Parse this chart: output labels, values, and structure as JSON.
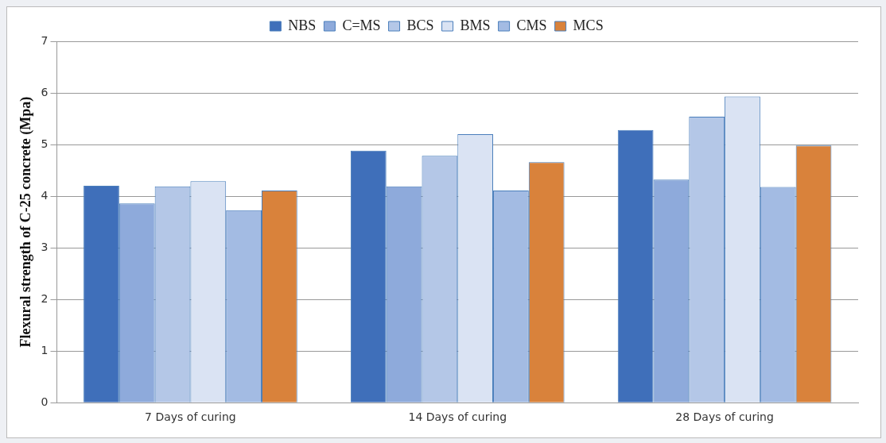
{
  "chart_data": {
    "type": "bar",
    "ylabel": "Flexural strength of C-25 concrete (Mpa)",
    "categories": [
      "7 Days of curing",
      "14 Days of curing",
      "28 Days of curing"
    ],
    "series": [
      {
        "name": "NBS",
        "color": "#3f6fba",
        "values": [
          4.2,
          4.88,
          5.28
        ]
      },
      {
        "name": "C=MS",
        "color": "#8eaadb",
        "values": [
          3.86,
          4.19,
          4.32
        ]
      },
      {
        "name": "BCS",
        "color": "#b4c7e7",
        "values": [
          4.19,
          4.78,
          5.54
        ]
      },
      {
        "name": "BMS",
        "color": "#dae3f3",
        "values": [
          4.29,
          5.2,
          5.93
        ]
      },
      {
        "name": "CMS",
        "color": "#a3bbe3",
        "values": [
          3.73,
          4.11,
          4.18
        ]
      },
      {
        "name": "MCS",
        "color": "#d9823b",
        "values": [
          4.11,
          4.66,
          4.98
        ]
      }
    ],
    "ylim": [
      0,
      7
    ],
    "yticks": [
      0,
      1,
      2,
      3,
      4,
      5,
      6,
      7
    ],
    "grid": "y",
    "legend": "top"
  }
}
